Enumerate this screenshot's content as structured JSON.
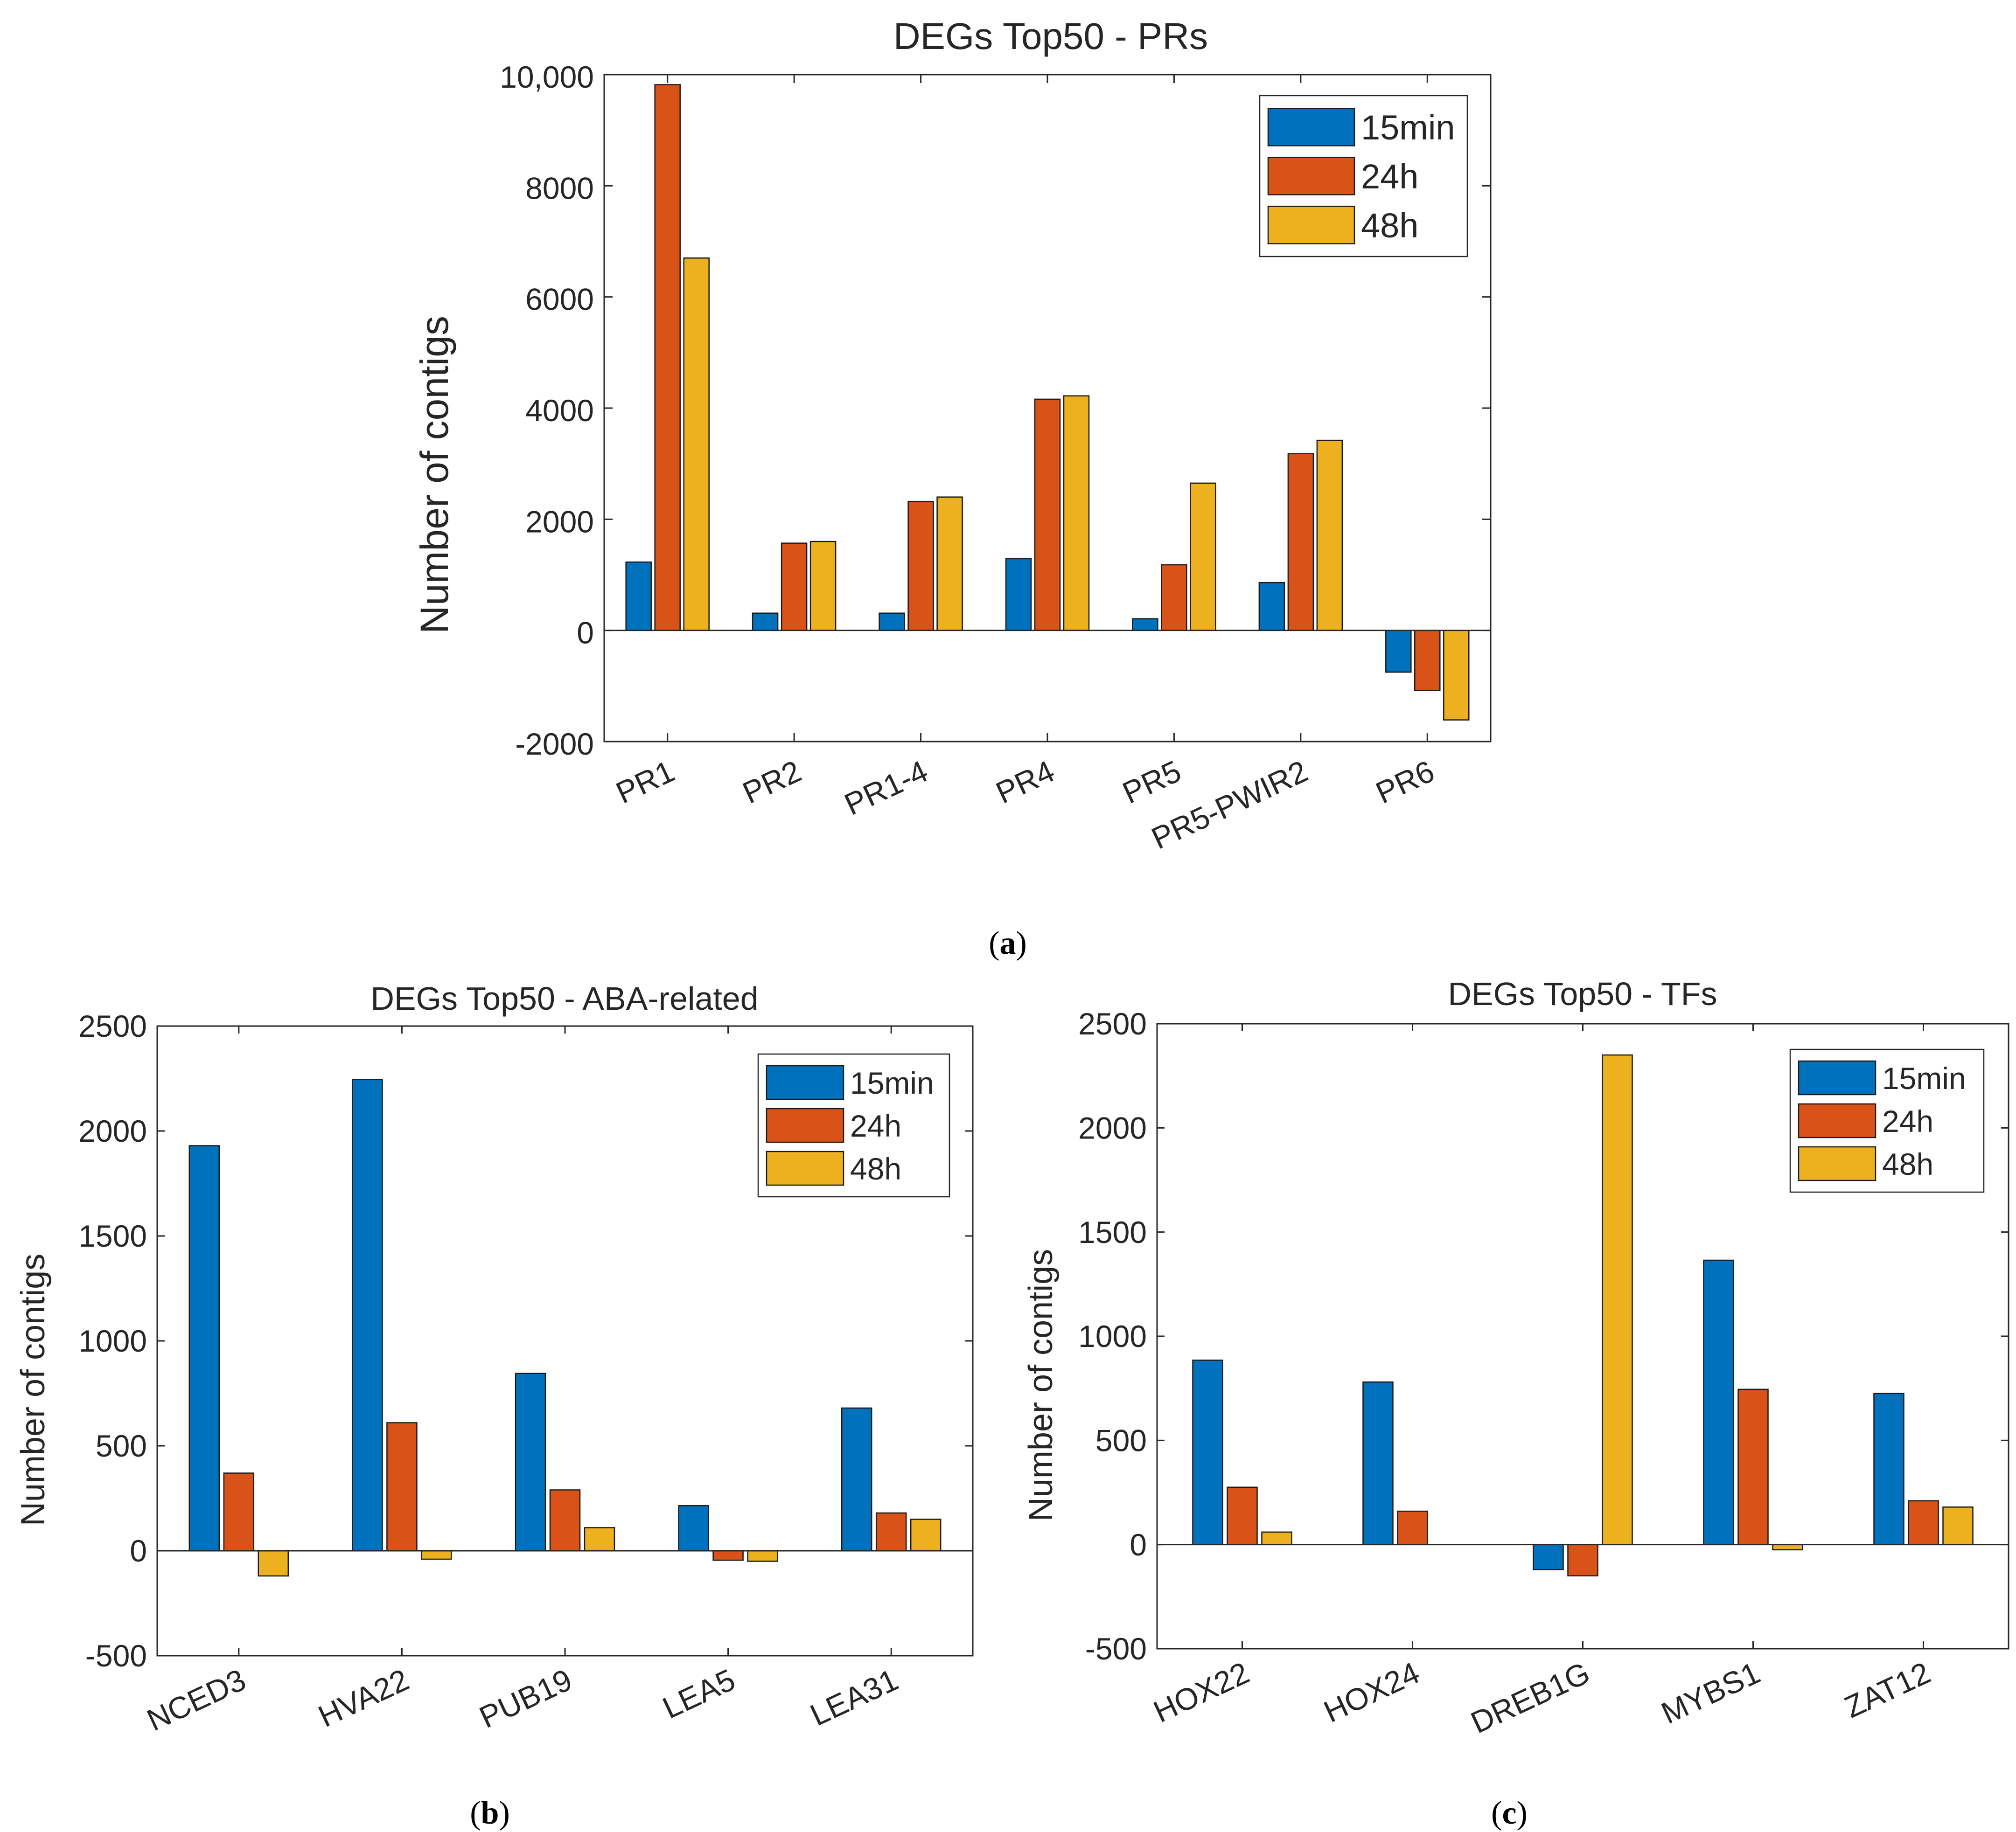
{
  "colors": {
    "15min": "#0072BD",
    "24h": "#D95319",
    "48h": "#EDB120",
    "axis": "#262626"
  },
  "panels": {
    "a": {
      "caption_letter": "a"
    },
    "b": {
      "caption_letter": "b"
    },
    "c": {
      "caption_letter": "c"
    }
  },
  "chart_data": [
    {
      "id": "a",
      "type": "bar",
      "title": "DEGs Top50 - PRs",
      "xlabel": "",
      "ylabel": "Number of contigs",
      "ylim": [
        -2000,
        10000
      ],
      "yticks": [
        -2000,
        0,
        2000,
        4000,
        6000,
        8000,
        10000
      ],
      "ytick_labels": [
        "-2000",
        "0",
        "2000",
        "4000",
        "6000",
        "8000",
        "10,000"
      ],
      "legend_position": "top-right",
      "categories": [
        "PR1",
        "PR2",
        "PR1-4",
        "PR4",
        "PR5",
        "PR5-PWIR2",
        "PR6"
      ],
      "series": [
        {
          "name": "15min",
          "values": [
            1230,
            310,
            310,
            1290,
            210,
            860,
            -750
          ]
        },
        {
          "name": "24h",
          "values": [
            9820,
            1570,
            2320,
            4160,
            1180,
            3180,
            -1080
          ]
        },
        {
          "name": "48h",
          "values": [
            6700,
            1600,
            2400,
            4220,
            2650,
            3420,
            -1610
          ]
        }
      ]
    },
    {
      "id": "b",
      "type": "bar",
      "title": "DEGs Top50 - ABA-related",
      "xlabel": "",
      "ylabel": "Number of contigs",
      "ylim": [
        -500,
        2500
      ],
      "yticks": [
        -500,
        0,
        500,
        1000,
        1500,
        2000,
        2500
      ],
      "ytick_labels": [
        "-500",
        "0",
        "500",
        "1000",
        "1500",
        "2000",
        "2500"
      ],
      "legend_position": "top-right",
      "categories": [
        "NCED3",
        "HVA22",
        "PUB19",
        "LEA5",
        "LEA31"
      ],
      "series": [
        {
          "name": "15min",
          "values": [
            1930,
            2245,
            845,
            215,
            680
          ]
        },
        {
          "name": "24h",
          "values": [
            370,
            610,
            290,
            -45,
            180
          ]
        },
        {
          "name": "48h",
          "values": [
            -120,
            -40,
            110,
            -50,
            150
          ]
        }
      ]
    },
    {
      "id": "c",
      "type": "bar",
      "title": "DEGs Top50 - TFs",
      "xlabel": "",
      "ylabel": "Number of contigs",
      "ylim": [
        -500,
        2500
      ],
      "yticks": [
        -500,
        0,
        500,
        1000,
        1500,
        2000,
        2500
      ],
      "ytick_labels": [
        "-500",
        "0",
        "500",
        "1000",
        "1500",
        "2000",
        "2500"
      ],
      "legend_position": "top-right",
      "categories": [
        "HOX22",
        "HOX24",
        "DREB1G",
        "MYBS1",
        "ZAT12"
      ],
      "series": [
        {
          "name": "15min",
          "values": [
            885,
            780,
            -120,
            1365,
            725
          ]
        },
        {
          "name": "24h",
          "values": [
            275,
            160,
            -150,
            745,
            210
          ]
        },
        {
          "name": "48h",
          "values": [
            60,
            0,
            2350,
            -25,
            180
          ]
        }
      ]
    }
  ]
}
